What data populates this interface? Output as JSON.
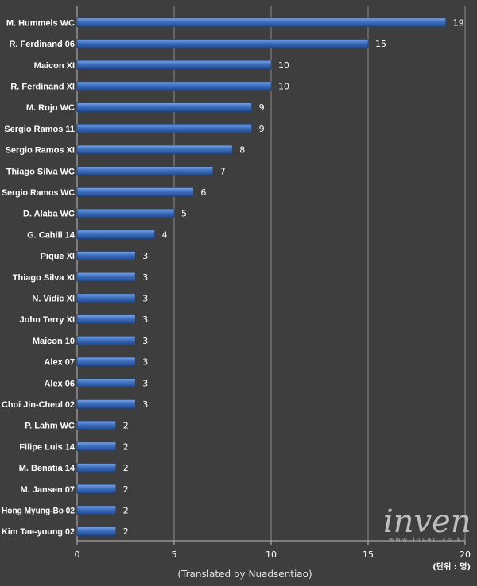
{
  "chart_data": {
    "type": "bar",
    "orientation": "horizontal",
    "title": "",
    "xlabel": "",
    "ylabel": "",
    "xlim": [
      0,
      20
    ],
    "xticks": [
      0,
      5,
      10,
      15,
      20
    ],
    "grid": true,
    "categories": [
      "M. Hummels WC",
      "R. Ferdinand 06",
      "Maicon XI",
      "R. Ferdinand XI",
      "M. Rojo WC",
      "Sergio Ramos 11",
      "Sergio Ramos XI",
      "Thiago Silva WC",
      "Sergio Ramos WC",
      "D. Alaba WC",
      "G. Cahill  14",
      "Pique XI",
      "Thiago Silva XI",
      "N. Vidic XI",
      "John Terry XI",
      "Maicon 10",
      "Alex 07",
      "Alex 06",
      "Choi Jin-Cheul 02",
      "P. Lahm WC",
      "Filipe Luis 14",
      "M. Benatia 14",
      "M. Jansen 07",
      "Hong Myung-Bo 02",
      "Kim Tae-young 02"
    ],
    "values": [
      19,
      15,
      10,
      10,
      9,
      9,
      8,
      7,
      6,
      5,
      4,
      3,
      3,
      3,
      3,
      3,
      3,
      3,
      3,
      2,
      2,
      2,
      2,
      2,
      2
    ],
    "bar_color": "#3d6fbf",
    "annotation": "(Translated by Nuadsentiao)",
    "unit_label": "(단위 : 명)"
  },
  "colors": {
    "background": "#3e3e3e",
    "grid": "#8a8a8a",
    "text": "#ffffff"
  },
  "watermark": {
    "logo_text": "inven",
    "url": "w w w . i n v e n . c o . k r"
  }
}
